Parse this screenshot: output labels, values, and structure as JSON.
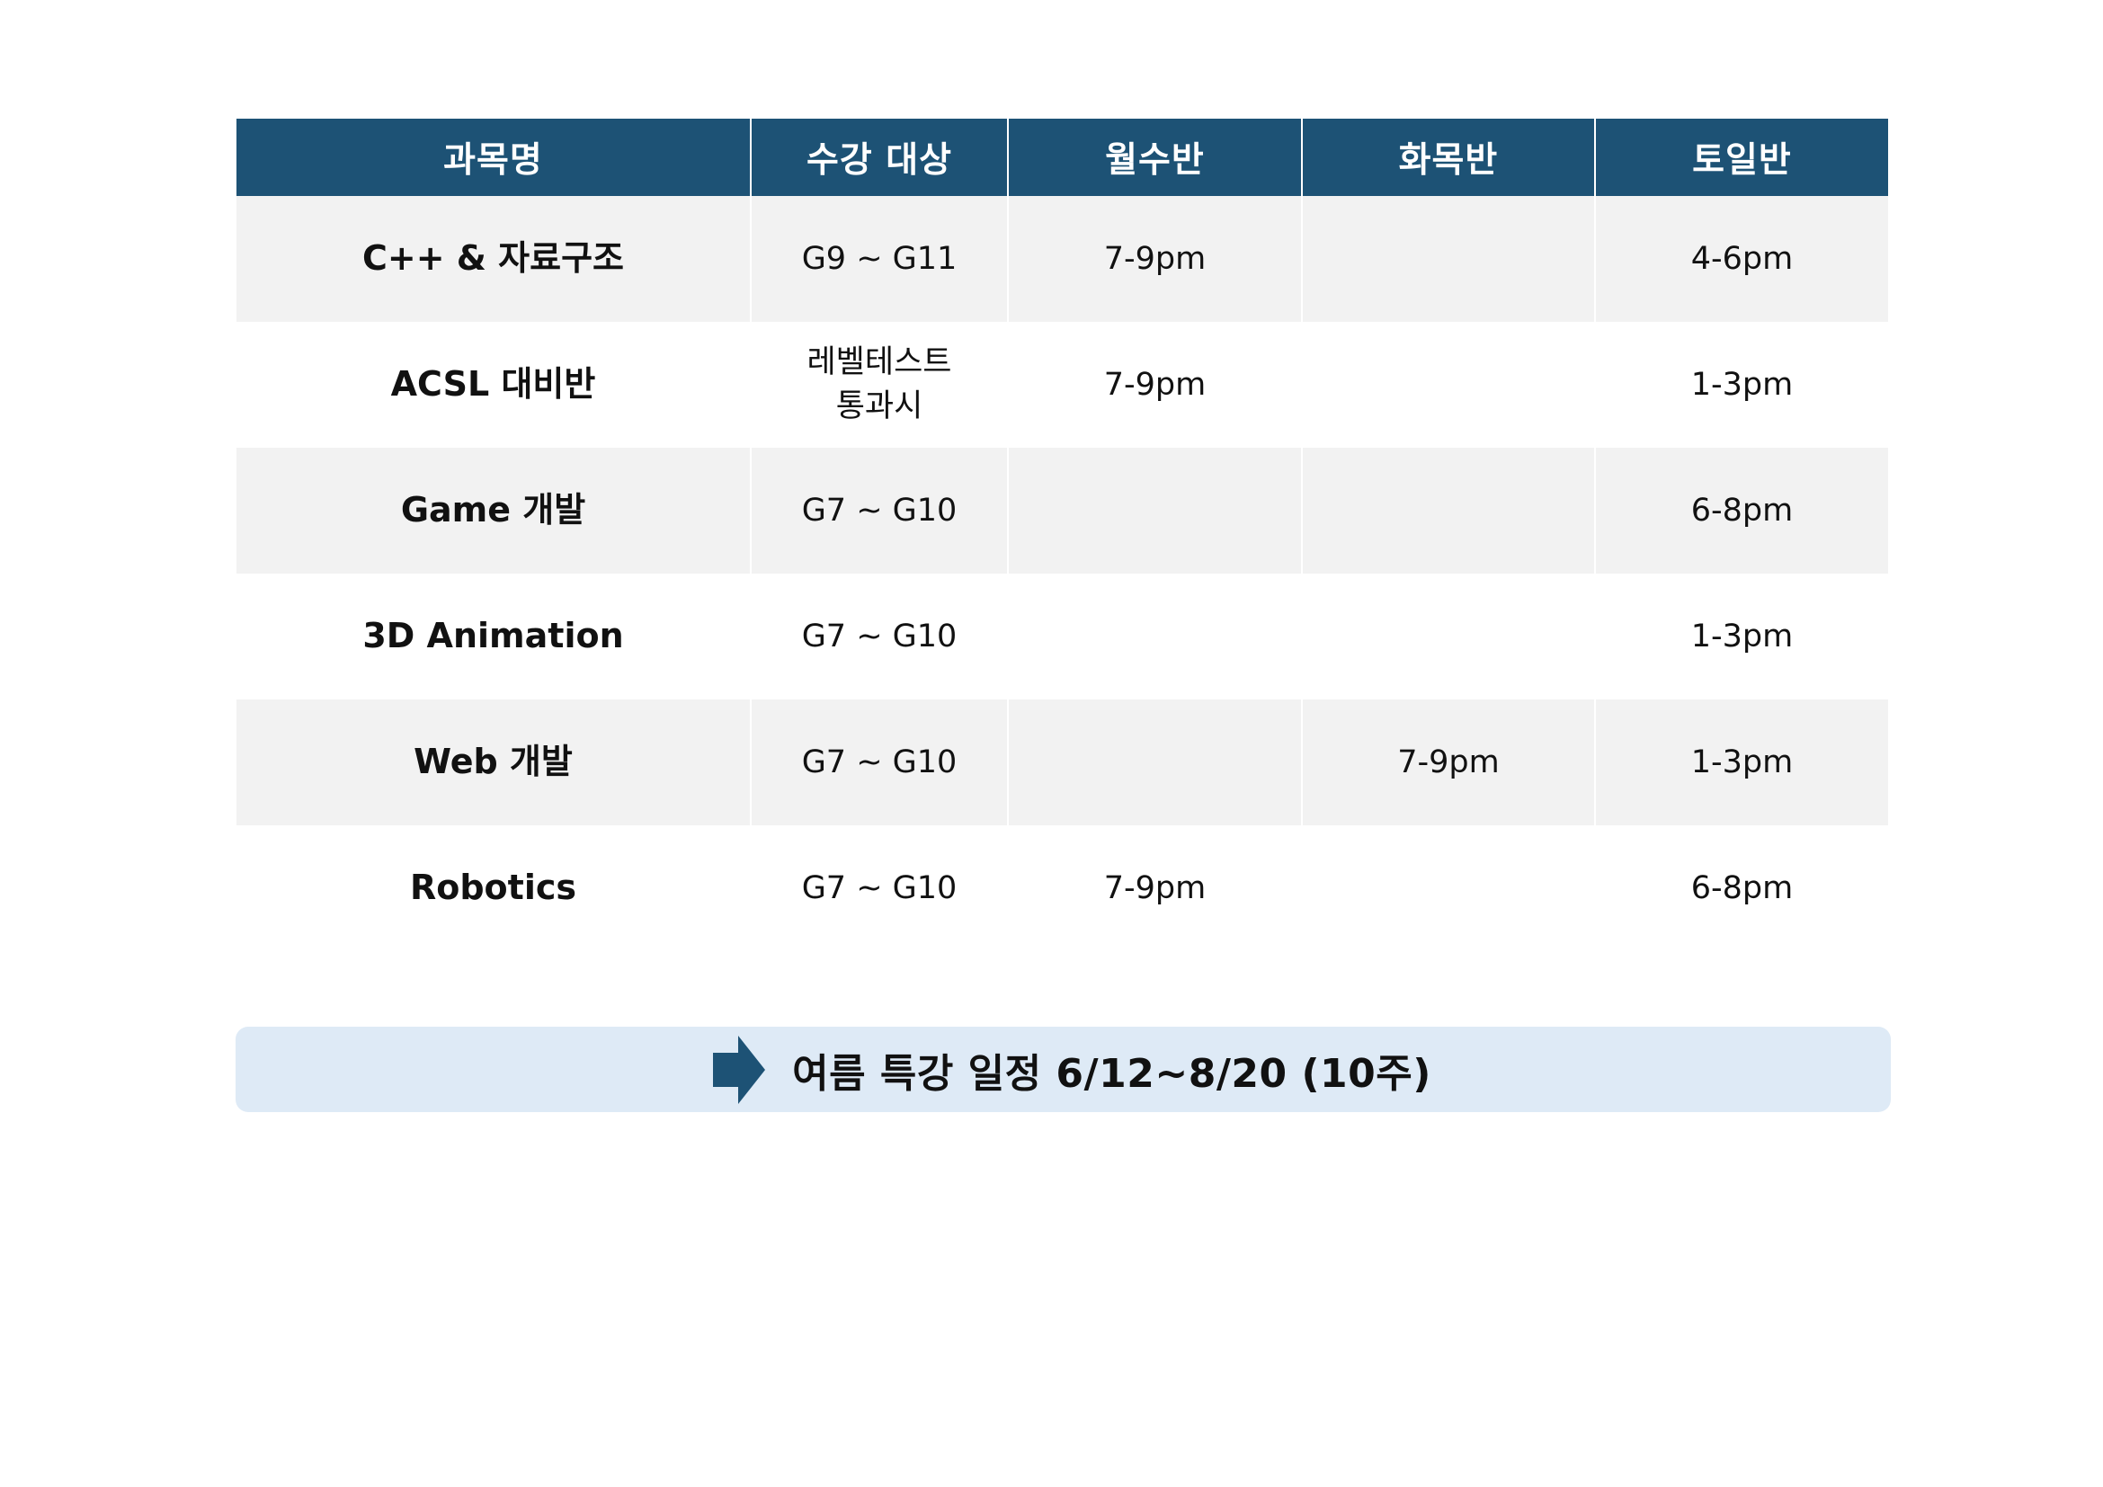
{
  "table": {
    "headers": [
      "과목명",
      "수강 대상",
      "월수반",
      "화목반",
      "토일반"
    ],
    "rows": [
      {
        "subject": "C++ & 자료구조",
        "target": [
          "G9 ~ G11"
        ],
        "mon_wed": "7-9pm",
        "tue_thu": "",
        "sat_sun": "4-6pm"
      },
      {
        "subject": "ACSL 대비반",
        "target": [
          "레벨테스트",
          "통과시"
        ],
        "mon_wed": "7-9pm",
        "tue_thu": "",
        "sat_sun": "1-3pm"
      },
      {
        "subject": "Game 개발",
        "target": [
          "G7 ~ G10"
        ],
        "mon_wed": "",
        "tue_thu": "",
        "sat_sun": "6-8pm"
      },
      {
        "subject": "3D Animation",
        "target": [
          "G7 ~ G10"
        ],
        "mon_wed": "",
        "tue_thu": "",
        "sat_sun": "1-3pm"
      },
      {
        "subject": "Web 개발",
        "target": [
          "G7 ~ G10"
        ],
        "mon_wed": "",
        "tue_thu": "7-9pm",
        "sat_sun": "1-3pm"
      },
      {
        "subject": "Robotics",
        "target": [
          "G7 ~ G10"
        ],
        "mon_wed": "7-9pm",
        "tue_thu": "",
        "sat_sun": "6-8pm"
      }
    ]
  },
  "banner": {
    "icon": "right-arrow-icon",
    "text": "여름 특강 일정 6/12~8/20 (10주)"
  },
  "colors": {
    "header_bg": "#1d5275",
    "header_text": "#ffffff",
    "row_shaded": "#f2f2f2",
    "banner_bg": "#deeaf6",
    "arrow": "#1d5275"
  }
}
